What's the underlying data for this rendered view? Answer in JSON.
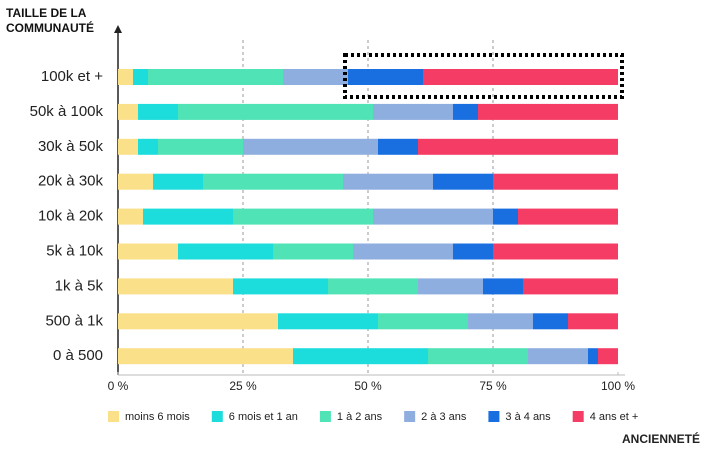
{
  "chart_data": {
    "type": "stacked_barh",
    "y_label": "TAILLE DE LA COMMUNAUTÉ",
    "x_label": "ANCIENNETÉ",
    "categories": [
      "100k et +",
      "50k à 100k",
      "30k à 50k",
      "20k à 30k",
      "10k à 20k",
      "5k à 10k",
      "1k à 5k",
      "500 à 1k",
      "0 à 500"
    ],
    "series": [
      {
        "name": "moins 6 mois",
        "color": "#fbe08a",
        "values": [
          3,
          4,
          4,
          7,
          5,
          12,
          23,
          32,
          35
        ]
      },
      {
        "name": "6 mois et 1 an",
        "color": "#1cdcdc",
        "values": [
          3,
          8,
          4,
          10,
          18,
          19,
          19,
          20,
          27
        ]
      },
      {
        "name": "1 à 2 ans",
        "color": "#50e3b5",
        "values": [
          27,
          39,
          17,
          28,
          28,
          16,
          18,
          18,
          20
        ]
      },
      {
        "name": "2 à 3 ans",
        "color": "#8eaee0",
        "values": [
          13,
          16,
          27,
          18,
          24,
          20,
          13,
          13,
          12
        ]
      },
      {
        "name": "3 à 4 ans",
        "color": "#1a6fe0",
        "values": [
          15,
          5,
          8,
          12,
          5,
          8,
          8,
          7,
          2
        ]
      },
      {
        "name": "4 ans et +",
        "color": "#f53c64",
        "values": [
          39,
          28,
          40,
          25,
          20,
          25,
          19,
          10,
          4
        ]
      }
    ],
    "xlim": [
      0,
      100
    ],
    "xticks": [
      {
        "value": 0,
        "label": "0 %"
      },
      {
        "value": 25,
        "label": "25 %"
      },
      {
        "value": 50,
        "label": "50 %"
      },
      {
        "value": 75,
        "label": "75 %"
      },
      {
        "value": 100,
        "label": "100 %"
      }
    ],
    "grid": true
  }
}
